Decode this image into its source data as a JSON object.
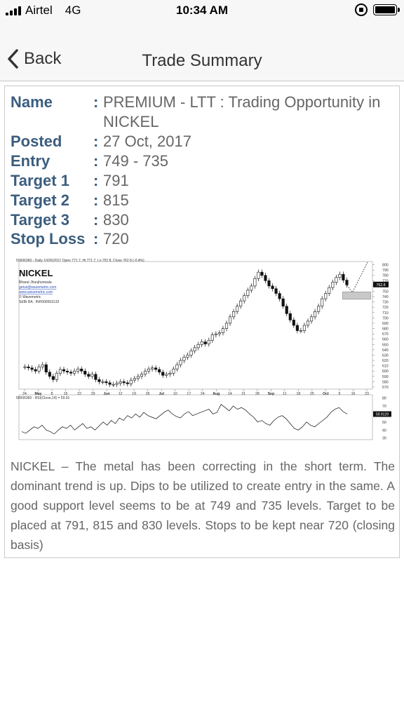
{
  "status_bar": {
    "carrier": "Airtel",
    "network": "4G",
    "time": "10:34 AM"
  },
  "nav": {
    "back_label": "Back",
    "title": "Trade Summary"
  },
  "trade": {
    "fields": [
      {
        "label": "Name",
        "value": "PREMIUM - LTT : Trading Opportunity in NICKEL"
      },
      {
        "label": "Posted",
        "value": "27 Oct, 2017"
      },
      {
        "label": "Entry",
        "value": "749 - 735"
      },
      {
        "label": "Target 1",
        "value": "791"
      },
      {
        "label": "Target 2",
        "value": "815"
      },
      {
        "label": "Target 3",
        "value": "830"
      },
      {
        "label": "Stop Loss",
        "value": "720"
      }
    ],
    "colon": ":",
    "description": "NICKEL – The metal has been correcting in the short term. The dominant trend is up. Dips to be utilized to create entry in the same. A good support level seems to be at 749 and 735 levels. Target to be placed at 791, 815 and 830 levels. Stops to be kept near 720 (closing basis)"
  },
  "chart_data": {
    "type": "line",
    "header": "50006360 - Daily 10/26/2017 Open 771.7, Hi 771.7, Lo 752.8, Close 762.8 (-0.4%)",
    "title": "NICKEL",
    "author_lines": [
      "Bharat Jhunjhunwala",
      "getus@wavemetric.com",
      "www.wavemetric.com",
      "© Wavemetric",
      "SEBI RA : INH300003132"
    ],
    "last_price_label": "762.8",
    "x_labels": [
      "24",
      "May",
      "8",
      "15",
      "22",
      "29",
      "Jun",
      "12",
      "19",
      "26",
      "Jul",
      "10",
      "17",
      "24",
      "Aug",
      "14",
      "21",
      "28",
      "Sep",
      "11",
      "18",
      "25",
      "Oct",
      "9",
      "16",
      "23"
    ],
    "price_axis": [
      800,
      790,
      780,
      770,
      760,
      750,
      740,
      730,
      720,
      710,
      700,
      690,
      680,
      670,
      660,
      650,
      640,
      630,
      620,
      610,
      600,
      590,
      580,
      570
    ],
    "ylim": [
      566,
      806
    ],
    "price_series": [
      608,
      606,
      603,
      600,
      608,
      612,
      598,
      590,
      584,
      596,
      603,
      600,
      598,
      596,
      600,
      604,
      600,
      594,
      590,
      594,
      584,
      580,
      580,
      578,
      575,
      575,
      577,
      580,
      578,
      576,
      583,
      586,
      590,
      594,
      600,
      604,
      606,
      603,
      598,
      592,
      594,
      596,
      604,
      612,
      620,
      626,
      630,
      638,
      644,
      650,
      655,
      651,
      658,
      668,
      670,
      672,
      680,
      690,
      702,
      712,
      722,
      732,
      742,
      752,
      760,
      774,
      786,
      780,
      770,
      760,
      755,
      746,
      736,
      722,
      708,
      696,
      686,
      676,
      676,
      686,
      694,
      702,
      712,
      722,
      736,
      746,
      757,
      767,
      776,
      782,
      771,
      762
    ],
    "indicator_header": "50006360 - RSI(Close,14) = 59.91",
    "indicator_axis": [
      80,
      70,
      60,
      50,
      40,
      30
    ],
    "indicator_ylim": [
      28,
      84
    ],
    "rsi_label": "59.9129",
    "rsi_series": [
      38,
      36,
      40,
      44,
      42,
      46,
      40,
      38,
      35,
      40,
      44,
      42,
      46,
      40,
      44,
      48,
      42,
      44,
      40,
      45,
      50,
      46,
      52,
      48,
      55,
      52,
      58,
      55,
      60,
      56,
      62,
      58,
      56,
      54,
      58,
      62,
      65,
      60,
      57,
      55,
      60,
      63,
      58,
      60,
      62,
      64,
      66,
      60,
      62,
      72,
      68,
      64,
      70,
      66,
      68,
      65,
      60,
      56,
      50,
      52,
      48,
      46,
      52,
      56,
      58,
      54,
      48,
      42,
      40,
      44,
      50,
      46,
      44,
      48,
      52,
      56,
      62,
      66,
      68,
      63,
      60
    ]
  }
}
